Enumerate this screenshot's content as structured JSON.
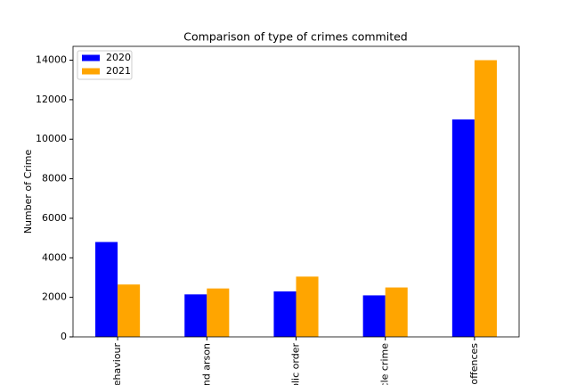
{
  "chart_data": {
    "type": "bar",
    "title": "Comparison of type of crimes commited",
    "y_label": "Number of Crime",
    "categories": [
      "behaviour",
      "nd arson",
      "blic order",
      "cle crime",
      "offences"
    ],
    "series": [
      {
        "name": "2020",
        "color": "#0000ff",
        "values": [
          4800,
          2150,
          2300,
          2100,
          11000
        ]
      },
      {
        "name": "2021",
        "color": "#ffa500",
        "values": [
          2650,
          2450,
          3050,
          2500,
          14000
        ]
      }
    ],
    "ylim": [
      0,
      14700
    ],
    "yticks": [
      0,
      2000,
      4000,
      6000,
      8000,
      10000,
      12000,
      14000
    ],
    "legend": "upper-left"
  }
}
